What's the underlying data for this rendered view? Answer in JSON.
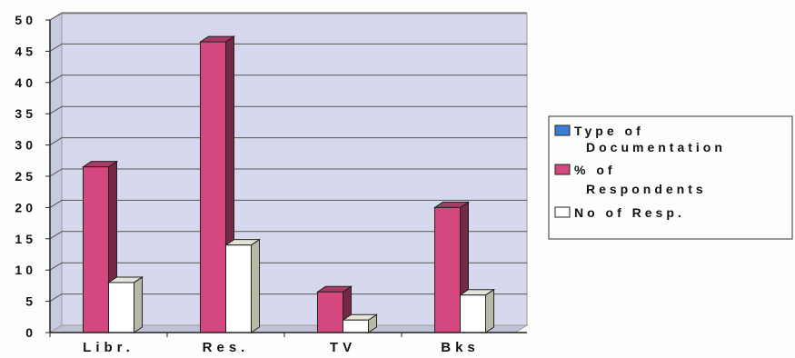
{
  "chart_data": {
    "type": "bar",
    "categories": [
      "Libr.",
      "Res.",
      "TV",
      "Bks"
    ],
    "series": [
      {
        "name": "Type of Documentation",
        "values": [
          0,
          0,
          0,
          0
        ],
        "color": "#3b7fd4"
      },
      {
        "name": "% of Respondents",
        "values": [
          26.5,
          46.5,
          6.5,
          20
        ],
        "color": "#d4487f"
      },
      {
        "name": "No of Resp.",
        "values": [
          8,
          14,
          2,
          6
        ],
        "color": "#ffffff"
      }
    ],
    "yticks": [
      "0",
      "5",
      "10",
      "15",
      "20",
      "25",
      "30",
      "35",
      "40",
      "45",
      "50"
    ],
    "ylim": [
      0,
      50
    ],
    "grid": true,
    "legend_position": "right",
    "plot_background": "#d6d9ee"
  }
}
